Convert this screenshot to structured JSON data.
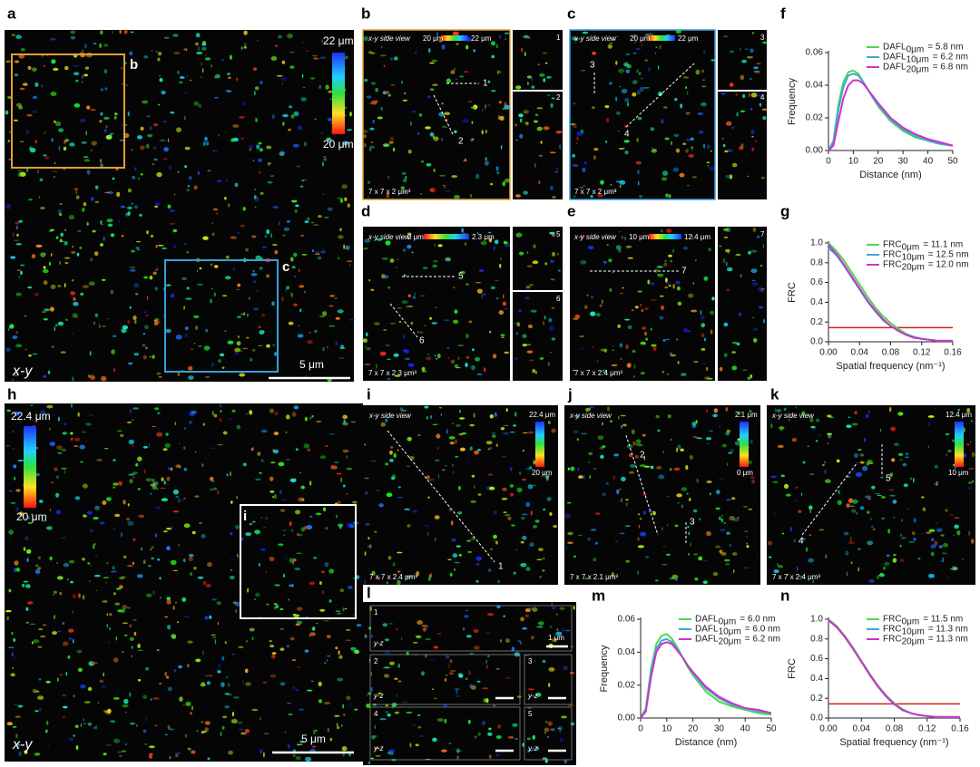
{
  "panels": {
    "a": {
      "label": "a",
      "view": "x-y",
      "scale_bar": "5 μm",
      "colorbar_max": "22 μm",
      "colorbar_min": "20 μm",
      "roi_b": "b",
      "roi_c": "c"
    },
    "b": {
      "label": "b",
      "view": "x-y side view",
      "colorbar_min": "20 μm",
      "colorbar_max": "22 μm",
      "line_1": "1",
      "line_2": "2",
      "volume": "7 x 7 x 2 μm³",
      "side_1": "1",
      "side_2": "2"
    },
    "c": {
      "label": "c",
      "view": "x-y side view",
      "colorbar_min": "20 μm",
      "colorbar_max": "22 μm",
      "line_3": "3",
      "line_4": "4",
      "volume": "7 x 7 x 2 μm³",
      "side_3": "3",
      "side_4": "4"
    },
    "d": {
      "label": "d",
      "view": "x-y side view",
      "colorbar_min": "0 μm",
      "colorbar_max": "2.3 μm",
      "line_5": "5",
      "line_6": "6",
      "volume": "7 x 7 x 2.3 μm³",
      "side_5": "5",
      "side_6": "6"
    },
    "e": {
      "label": "e",
      "view": "x-y side view",
      "colorbar_min": "10 μm",
      "colorbar_max": "12.4 μm",
      "line_7": "7",
      "volume": "7 x 7 x 2.4 μm³",
      "side_7": "7"
    },
    "h": {
      "label": "h",
      "view": "x-y",
      "scale_bar": "5 μm",
      "colorbar_max": "22.4 μm",
      "colorbar_min": "20 μm",
      "roi_i": "i"
    },
    "i": {
      "label": "i",
      "view": "x-y side view",
      "colorbar_max": "22.4 μm",
      "colorbar_min": "20 μm",
      "line_1": "1",
      "volume": "7 x 7 x 2.4 μm³"
    },
    "j": {
      "label": "j",
      "view": "x-y side view",
      "colorbar_max": "2.1 μm",
      "colorbar_min": "0 μm",
      "line_2": "2",
      "line_3": "3",
      "volume": "7 x 7 x 2.1 μm³"
    },
    "k": {
      "label": "k",
      "view": "x-y side view",
      "colorbar_max": "12.4 μm",
      "colorbar_min": "10 μm",
      "line_4": "4",
      "line_5": "5",
      "volume": "7 x 7 x 2.4 μm³"
    },
    "l": {
      "label": "l",
      "rows": [
        {
          "id": "1",
          "view": "y-z",
          "scale_bar": "1 μm"
        },
        {
          "id": "2",
          "view": "y-z"
        },
        {
          "id": "3",
          "view": "y-z"
        },
        {
          "id": "4",
          "view": "y-z"
        },
        {
          "id": "5",
          "view": "y-z"
        }
      ]
    }
  },
  "chart_data": [
    {
      "type": "line",
      "panel_label": "f",
      "x_label": "Distance (nm)",
      "y_label": "Frequency",
      "xlim": [
        0,
        50
      ],
      "xticks": [
        0,
        10,
        20,
        30,
        40,
        50
      ],
      "ylim": [
        0,
        0.06
      ],
      "yticks": [
        {
          "value": 0,
          "label": "0.00"
        },
        0.02,
        0.04,
        0.06
      ],
      "x": [
        0,
        2,
        4,
        6,
        8,
        10,
        12,
        14,
        16,
        18,
        20,
        25,
        30,
        35,
        40,
        45,
        50
      ],
      "series": [
        {
          "name": "DAFL",
          "name_subscript": "0μm",
          "legend_value": "= 5.8 nm",
          "color": "#4cd84c",
          "values": [
            0,
            0.006,
            0.028,
            0.042,
            0.048,
            0.049,
            0.047,
            0.042,
            0.037,
            0.032,
            0.027,
            0.018,
            0.012,
            0.008,
            0.006,
            0.004,
            0.003
          ]
        },
        {
          "name": "DAFL",
          "name_subscript": "10μm",
          "legend_value": "= 6.2 nm",
          "color": "#3fa8d8",
          "values": [
            0,
            0.005,
            0.025,
            0.039,
            0.046,
            0.047,
            0.046,
            0.042,
            0.037,
            0.032,
            0.028,
            0.019,
            0.013,
            0.009,
            0.006,
            0.004,
            0.003
          ]
        },
        {
          "name": "DAFL",
          "name_subscript": "20μm",
          "legend_value": "= 6.8 nm",
          "color": "#cc33cc",
          "values": [
            0,
            0.003,
            0.018,
            0.032,
            0.04,
            0.043,
            0.043,
            0.041,
            0.037,
            0.033,
            0.029,
            0.02,
            0.014,
            0.01,
            0.007,
            0.005,
            0.003
          ]
        }
      ]
    },
    {
      "type": "line",
      "panel_label": "g",
      "x_label": "Spatial frequency (nm⁻¹)",
      "y_label": "FRC",
      "xlim": [
        0,
        0.16
      ],
      "xticks": [
        {
          "value": 0,
          "label": "0.00"
        },
        0.04,
        0.08,
        0.12,
        0.16
      ],
      "ylim": [
        0,
        1
      ],
      "yticks": [
        {
          "value": 0,
          "label": "0.0"
        },
        0.2,
        0.4,
        0.6,
        0.8,
        {
          "value": 1,
          "label": "1.0"
        }
      ],
      "threshold": 0.143,
      "threshold_color": "#d42020",
      "x": [
        0,
        0.01,
        0.02,
        0.03,
        0.04,
        0.05,
        0.06,
        0.07,
        0.08,
        0.09,
        0.1,
        0.11,
        0.12,
        0.13,
        0.14,
        0.15,
        0.16
      ],
      "series": [
        {
          "name": "FRC",
          "name_subscript": "0μm",
          "legend_value": "= 11.1 nm",
          "color": "#4cd84c",
          "values": [
            1,
            0.92,
            0.82,
            0.7,
            0.58,
            0.46,
            0.35,
            0.26,
            0.19,
            0.13,
            0.08,
            0.05,
            0.03,
            0.02,
            0.01,
            0.01,
            0.01
          ]
        },
        {
          "name": "FRC",
          "name_subscript": "10μm",
          "legend_value": "= 12.5 nm",
          "color": "#3fa8d8",
          "values": [
            0.95,
            0.88,
            0.77,
            0.65,
            0.53,
            0.41,
            0.31,
            0.22,
            0.16,
            0.11,
            0.07,
            0.05,
            0.03,
            0.02,
            0.01,
            0.01,
            0.01
          ]
        },
        {
          "name": "FRC",
          "name_subscript": "20μm",
          "legend_value": "= 12.0 nm",
          "color": "#cc33cc",
          "values": [
            0.98,
            0.89,
            0.78,
            0.66,
            0.54,
            0.42,
            0.32,
            0.23,
            0.16,
            0.11,
            0.07,
            0.04,
            0.03,
            0.02,
            0.01,
            0.01,
            0.01
          ]
        }
      ]
    },
    {
      "type": "line",
      "panel_label": "m",
      "x_label": "Distance (nm)",
      "y_label": "Frequency",
      "xlim": [
        0,
        50
      ],
      "xticks": [
        0,
        10,
        20,
        30,
        40,
        50
      ],
      "ylim": [
        0,
        0.06
      ],
      "yticks": [
        {
          "value": 0,
          "label": "0.00"
        },
        0.02,
        0.04,
        0.06
      ],
      "x": [
        0,
        2,
        4,
        6,
        8,
        10,
        12,
        14,
        16,
        18,
        20,
        25,
        30,
        35,
        40,
        45,
        50
      ],
      "series": [
        {
          "name": "DAFL",
          "name_subscript": "0μm",
          "legend_value": "= 6.0 nm",
          "color": "#4cd84c",
          "values": [
            0,
            0.006,
            0.03,
            0.045,
            0.05,
            0.051,
            0.048,
            0.043,
            0.037,
            0.031,
            0.026,
            0.016,
            0.01,
            0.007,
            0.005,
            0.003,
            0.002
          ]
        },
        {
          "name": "DAFL",
          "name_subscript": "10μm",
          "legend_value": "= 6.0 nm",
          "color": "#3fa8d8",
          "values": [
            0,
            0.005,
            0.028,
            0.042,
            0.047,
            0.048,
            0.046,
            0.042,
            0.037,
            0.032,
            0.027,
            0.018,
            0.012,
            0.008,
            0.006,
            0.004,
            0.003
          ]
        },
        {
          "name": "DAFL",
          "name_subscript": "20μm",
          "legend_value": "= 6.2 nm",
          "color": "#cc33cc",
          "values": [
            0,
            0.004,
            0.025,
            0.04,
            0.045,
            0.046,
            0.045,
            0.041,
            0.037,
            0.032,
            0.028,
            0.019,
            0.013,
            0.009,
            0.006,
            0.005,
            0.003
          ]
        }
      ]
    },
    {
      "type": "line",
      "panel_label": "n",
      "x_label": "Spatial frequency (nm⁻¹)",
      "y_label": "FRC",
      "xlim": [
        0,
        0.16
      ],
      "xticks": [
        {
          "value": 0,
          "label": "0.00"
        },
        0.04,
        0.08,
        0.12,
        0.16
      ],
      "ylim": [
        0,
        1
      ],
      "yticks": [
        {
          "value": 0,
          "label": "0.0"
        },
        0.2,
        0.4,
        0.6,
        0.8,
        {
          "value": 1,
          "label": "1.0"
        }
      ],
      "threshold": 0.143,
      "threshold_color": "#d42020",
      "x": [
        0,
        0.01,
        0.02,
        0.03,
        0.04,
        0.05,
        0.06,
        0.07,
        0.08,
        0.09,
        0.1,
        0.11,
        0.12,
        0.13,
        0.14,
        0.15,
        0.16
      ],
      "series": [
        {
          "name": "FRC",
          "name_subscript": "0μm",
          "legend_value": "= 11.5 nm",
          "color": "#4cd84c",
          "values": [
            1,
            0.93,
            0.83,
            0.71,
            0.58,
            0.45,
            0.33,
            0.23,
            0.15,
            0.09,
            0.05,
            0.03,
            0.02,
            0.01,
            0.01,
            0.01,
            0.01
          ]
        },
        {
          "name": "FRC",
          "name_subscript": "10μm",
          "legend_value": "= 11.3 nm",
          "color": "#3fa8d8",
          "values": [
            0.99,
            0.92,
            0.82,
            0.7,
            0.57,
            0.44,
            0.32,
            0.22,
            0.14,
            0.08,
            0.05,
            0.03,
            0.02,
            0.01,
            0.01,
            0.01,
            0.01
          ]
        },
        {
          "name": "FRC",
          "name_subscript": "20μm",
          "legend_value": "= 11.3 nm",
          "color": "#cc33cc",
          "values": [
            0.99,
            0.92,
            0.82,
            0.7,
            0.57,
            0.44,
            0.32,
            0.22,
            0.14,
            0.08,
            0.05,
            0.03,
            0.02,
            0.01,
            0.01,
            0.01,
            0.01
          ]
        }
      ]
    }
  ]
}
